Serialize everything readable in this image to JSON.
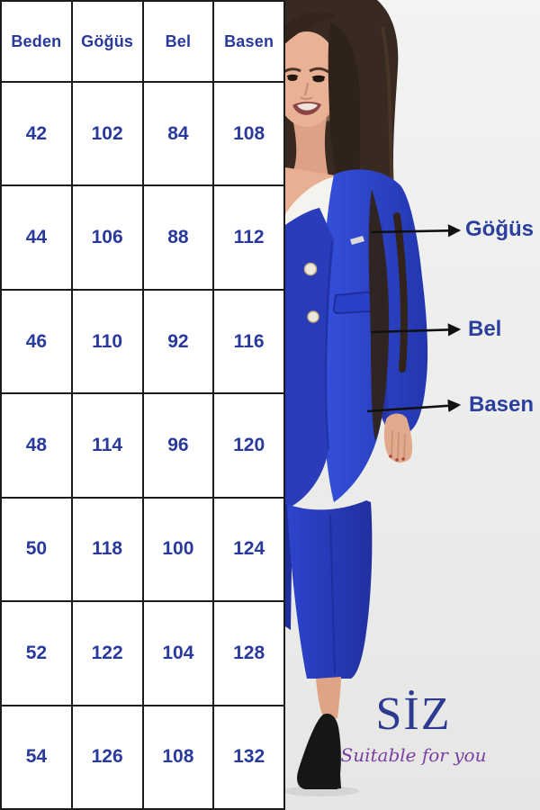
{
  "chart_data": {
    "type": "table",
    "columns": [
      "Beden",
      "Göğüs",
      "Bel",
      "Basen"
    ],
    "rows": [
      [
        42,
        102,
        84,
        108
      ],
      [
        44,
        106,
        88,
        112
      ],
      [
        46,
        110,
        92,
        116
      ],
      [
        48,
        114,
        96,
        120
      ],
      [
        50,
        118,
        100,
        124
      ],
      [
        52,
        122,
        104,
        128
      ],
      [
        54,
        126,
        108,
        132
      ]
    ],
    "layout": "header row on top, black grid borders, navy bold values on white"
  },
  "table": {
    "headers": [
      "Beden",
      "Göğüs",
      "Bel",
      "Basen"
    ],
    "rows": [
      [
        "42",
        "102",
        "84",
        "108"
      ],
      [
        "44",
        "106",
        "88",
        "112"
      ],
      [
        "46",
        "110",
        "92",
        "116"
      ],
      [
        "48",
        "114",
        "96",
        "120"
      ],
      [
        "50",
        "118",
        "100",
        "124"
      ],
      [
        "52",
        "122",
        "104",
        "128"
      ],
      [
        "54",
        "126",
        "108",
        "132"
      ]
    ]
  },
  "annotations": {
    "gogus": "Göğüs",
    "bel": "Bel",
    "basen": "Basen"
  },
  "logo": {
    "brand": "SİZ",
    "tagline": "Suitable for you"
  },
  "colors": {
    "table_text": "#293a9c",
    "table_border": "#1b1b1b",
    "annotation_text": "#2b3f9e",
    "arrow_color": "#111111",
    "brand_text": "#2d3a8f",
    "tagline_text": "#7b3fa3",
    "suit_blue": "#2c41c6",
    "photo_background": "#edeeec"
  }
}
